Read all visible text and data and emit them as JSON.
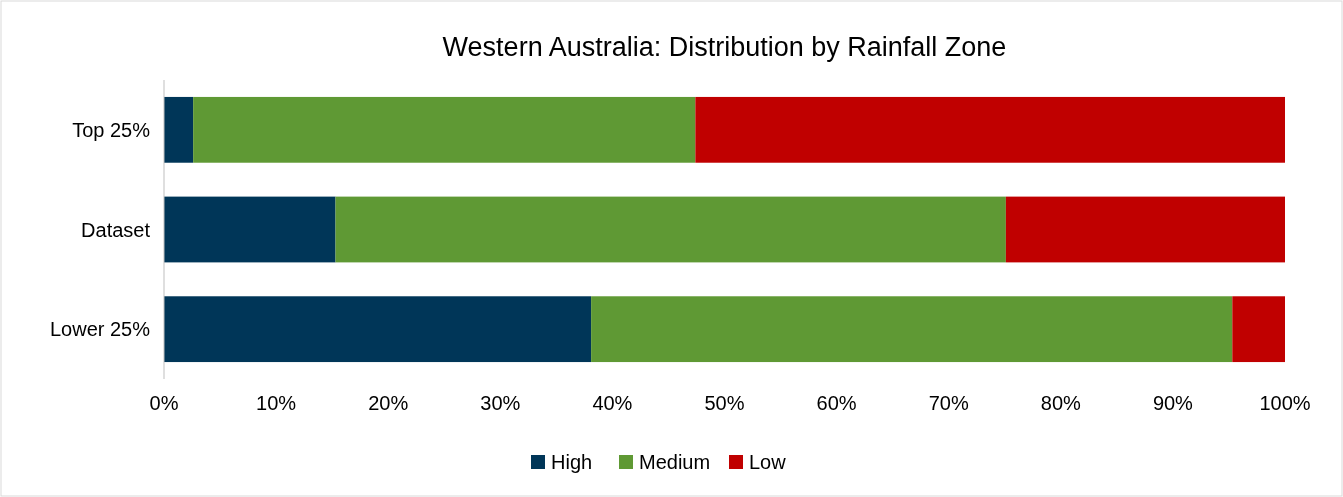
{
  "chart_data": {
    "type": "bar",
    "title": "Western Australia: Distribution by Rainfall Zone",
    "orientation": "horizontal",
    "stacked": true,
    "categories": [
      "Top 25%",
      "Dataset",
      "Lower 25%"
    ],
    "series": [
      {
        "name": "High",
        "color": "#003658",
        "values": [
          2.6,
          15.3,
          38.1
        ]
      },
      {
        "name": "Medium",
        "color": "#5f9934",
        "values": [
          44.8,
          59.8,
          57.2
        ]
      },
      {
        "name": "Low",
        "color": "#c00000",
        "values": [
          52.6,
          24.9,
          4.7
        ]
      }
    ],
    "xlim": [
      0,
      100
    ],
    "xticks": [
      {
        "value": 0,
        "label": "0%"
      },
      {
        "value": 10,
        "label": "10%"
      },
      {
        "value": 20,
        "label": "20%"
      },
      {
        "value": 30,
        "label": "30%"
      },
      {
        "value": 40,
        "label": "40%"
      },
      {
        "value": 50,
        "label": "50%"
      },
      {
        "value": 60,
        "label": "60%"
      },
      {
        "value": 70,
        "label": "70%"
      },
      {
        "value": 80,
        "label": "80%"
      },
      {
        "value": 90,
        "label": "90%"
      },
      {
        "value": 100,
        "label": "100%"
      }
    ],
    "grid": false,
    "legend": "bottom"
  }
}
